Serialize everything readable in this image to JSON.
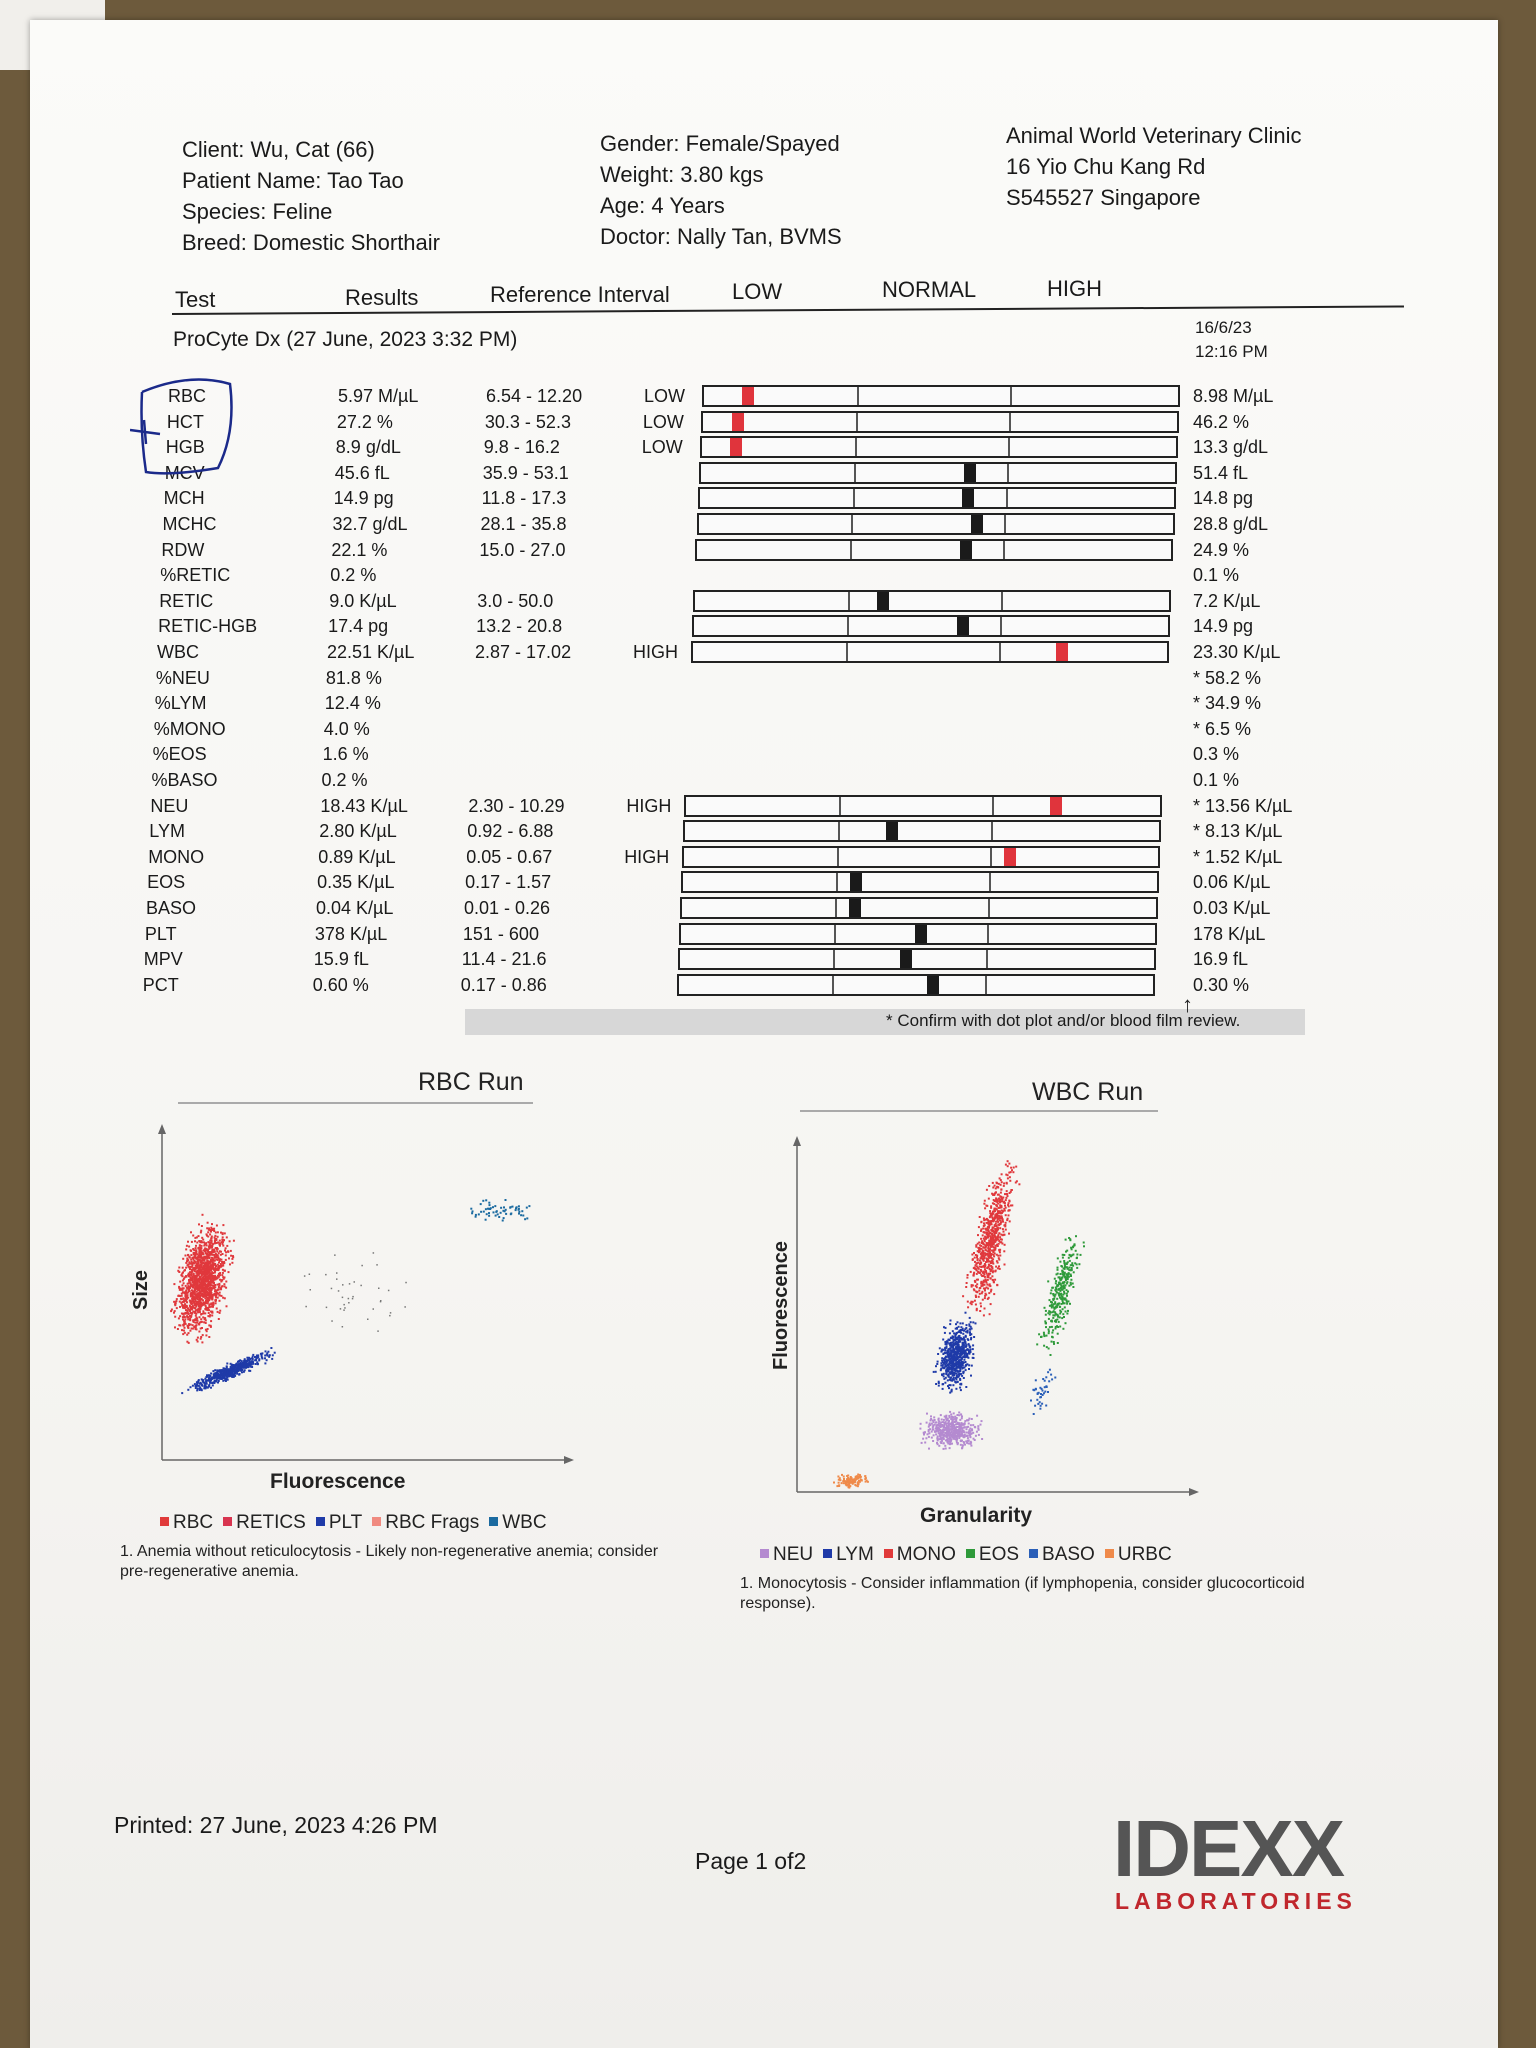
{
  "header": {
    "client": "Client: Wu, Cat (66)",
    "patient": "Patient Name: Tao Tao",
    "species": "Species: Feline",
    "breed": "Breed: Domestic Shorthair",
    "gender": "Gender: Female/Spayed",
    "weight": "Weight: 3.80 kgs",
    "age": "Age: 4 Years",
    "doctor": "Doctor: Nally Tan, BVMS",
    "clinic_name": "Animal World Veterinary Clinic",
    "clinic_addr1": "16 Yio Chu Kang Rd",
    "clinic_addr2": "S545527 Singapore"
  },
  "columns": {
    "test": "Test",
    "results": "Results",
    "reference": "Reference Interval",
    "low": "LOW",
    "normal": "NORMAL",
    "high": "HIGH"
  },
  "run": {
    "title": "ProCyte Dx (27 June, 2023 3:32 PM)",
    "prev_date": "16/6/23",
    "prev_time": "12:16 PM"
  },
  "rows": [
    {
      "test": "RBC",
      "result": "5.97 M/µL",
      "ref": "6.54 - 12.20",
      "flag": "LOW",
      "prev": "8.98 M/µL",
      "abn": true,
      "prev_abn": false,
      "mark": 0.08
    },
    {
      "test": "HCT",
      "result": "27.2 %",
      "ref": "30.3 - 52.3",
      "flag": "LOW",
      "prev": "46.2 %",
      "abn": true,
      "prev_abn": false,
      "mark": 0.06
    },
    {
      "test": "HGB",
      "result": "8.9 g/dL",
      "ref": "9.8 - 16.2",
      "flag": "LOW",
      "prev": "13.3 g/dL",
      "abn": true,
      "prev_abn": false,
      "mark": 0.06
    },
    {
      "test": "MCV",
      "result": "45.6 fL",
      "ref": "35.9 - 53.1",
      "flag": "",
      "prev": "51.4 fL",
      "abn": false,
      "prev_abn": false,
      "mark": 0.55
    },
    {
      "test": "MCH",
      "result": "14.9 pg",
      "ref": "11.8 - 17.3",
      "flag": "",
      "prev": "14.8 pg",
      "abn": false,
      "prev_abn": false,
      "mark": 0.55
    },
    {
      "test": "MCHC",
      "result": "32.7 g/dL",
      "ref": "28.1 - 35.8",
      "flag": "",
      "prev": "28.8 g/dL",
      "abn": false,
      "prev_abn": false,
      "mark": 0.57
    },
    {
      "test": "RDW",
      "result": "22.1 %",
      "ref": "15.0 - 27.0",
      "flag": "",
      "prev": "24.9 %",
      "abn": false,
      "prev_abn": false,
      "mark": 0.55
    },
    {
      "test": "%RETIC",
      "result": "0.2 %",
      "ref": "",
      "flag": "",
      "prev": "0.1 %",
      "abn": false,
      "prev_abn": false,
      "mark": null
    },
    {
      "test": "RETIC",
      "result": "9.0 K/µL",
      "ref": "3.0 - 50.0",
      "flag": "",
      "prev": "7.2 K/µL",
      "abn": false,
      "prev_abn": false,
      "mark": 0.38
    },
    {
      "test": "RETIC-HGB",
      "result": "17.4 pg",
      "ref": "13.2 - 20.8",
      "flag": "",
      "prev": "14.9 pg",
      "abn": false,
      "prev_abn": false,
      "mark": 0.55
    },
    {
      "test": "WBC",
      "result": "22.51 K/µL",
      "ref": "2.87 - 17.02",
      "flag": "HIGH",
      "prev": "23.30 K/µL",
      "abn": true,
      "prev_abn": true,
      "mark": 0.76
    },
    {
      "test": "%NEU",
      "result": "81.8 %",
      "ref": "",
      "flag": "",
      "prev": "* 58.2 %",
      "abn": false,
      "prev_abn": false,
      "mark": null
    },
    {
      "test": "%LYM",
      "result": "12.4 %",
      "ref": "",
      "flag": "",
      "prev": "* 34.9 %",
      "abn": false,
      "prev_abn": false,
      "mark": null
    },
    {
      "test": "%MONO",
      "result": "4.0 %",
      "ref": "",
      "flag": "",
      "prev": "* 6.5 %",
      "abn": false,
      "prev_abn": false,
      "mark": null
    },
    {
      "test": "%EOS",
      "result": "1.6 %",
      "ref": "",
      "flag": "",
      "prev": "0.3 %",
      "abn": false,
      "prev_abn": false,
      "mark": null
    },
    {
      "test": "%BASO",
      "result": "0.2 %",
      "ref": "",
      "flag": "",
      "prev": "0.1 %",
      "abn": false,
      "prev_abn": false,
      "mark": null
    },
    {
      "test": "NEU",
      "result": "18.43 K/µL",
      "ref": "2.30 - 10.29",
      "flag": "HIGH",
      "prev": "* 13.56 K/µL",
      "abn": true,
      "prev_abn": true,
      "mark": 0.76
    },
    {
      "test": "LYM",
      "result": "2.80 K/µL",
      "ref": "0.92 - 6.88",
      "flag": "",
      "prev": "* 8.13 K/µL",
      "abn": false,
      "prev_abn": true,
      "mark": 0.42
    },
    {
      "test": "MONO",
      "result": "0.89 K/µL",
      "ref": "0.05 - 0.67",
      "flag": "HIGH",
      "prev": "* 1.52 K/µL",
      "abn": true,
      "prev_abn": true,
      "mark": 0.67
    },
    {
      "test": "EOS",
      "result": "0.35 K/µL",
      "ref": "0.17 - 1.57",
      "flag": "",
      "prev": "0.06 K/µL",
      "abn": false,
      "prev_abn": true,
      "mark": 0.35
    },
    {
      "test": "BASO",
      "result": "0.04 K/µL",
      "ref": "0.01 - 0.26",
      "flag": "",
      "prev": "0.03 K/µL",
      "abn": false,
      "prev_abn": false,
      "mark": 0.35
    },
    {
      "test": "PLT",
      "result": "378 K/µL",
      "ref": "151 - 600",
      "flag": "",
      "prev": "178 K/µL",
      "abn": false,
      "prev_abn": false,
      "mark": 0.49
    },
    {
      "test": "MPV",
      "result": "15.9 fL",
      "ref": "11.4 - 21.6",
      "flag": "",
      "prev": "16.9 fL",
      "abn": false,
      "prev_abn": false,
      "mark": 0.46
    },
    {
      "test": "PCT",
      "result": "0.60 %",
      "ref": "0.17 - 0.86",
      "flag": "",
      "prev": "0.30 %",
      "abn": false,
      "prev_abn": false,
      "mark": 0.52
    }
  ],
  "confirm_note": "* Confirm with dot plot and/or blood film review.",
  "rbc_run": {
    "title": "RBC Run",
    "y_label": "Size",
    "x_label": "Fluorescence",
    "legend": [
      {
        "label": "RBC",
        "color": "#e03a3a"
      },
      {
        "label": "RETICS",
        "color": "#d8344f"
      },
      {
        "label": "PLT",
        "color": "#1f3aa8"
      },
      {
        "label": "RBC Frags",
        "color": "#f08a80"
      },
      {
        "label": "WBC",
        "color": "#1b6aa0"
      }
    ],
    "note": "1. Anemia without reticulocytosis - Likely non-regenerative anemia; consider",
    "note2": "pre-regenerative anemia."
  },
  "wbc_run": {
    "title": "WBC Run",
    "y_label": "Fluorescence",
    "x_label": "Granularity",
    "legend": [
      {
        "label": "NEU",
        "color": "#b48ad0"
      },
      {
        "label": "LYM",
        "color": "#1f3aa8"
      },
      {
        "label": "MONO",
        "color": "#e03a3a"
      },
      {
        "label": "EOS",
        "color": "#2e9a3a"
      },
      {
        "label": "BASO",
        "color": "#2a5fb8"
      },
      {
        "label": "URBC",
        "color": "#ef8a4a"
      }
    ],
    "note": "1. Monocytosis - Consider inflammation (if lymphopenia, consider glucocorticoid",
    "note2": "response)."
  },
  "footer": {
    "printed": "Printed: 27 June, 2023 4:26 PM",
    "page": "Page 1 of2",
    "logo_main": "IDEXX",
    "logo_sub": "LABORATORIES"
  }
}
